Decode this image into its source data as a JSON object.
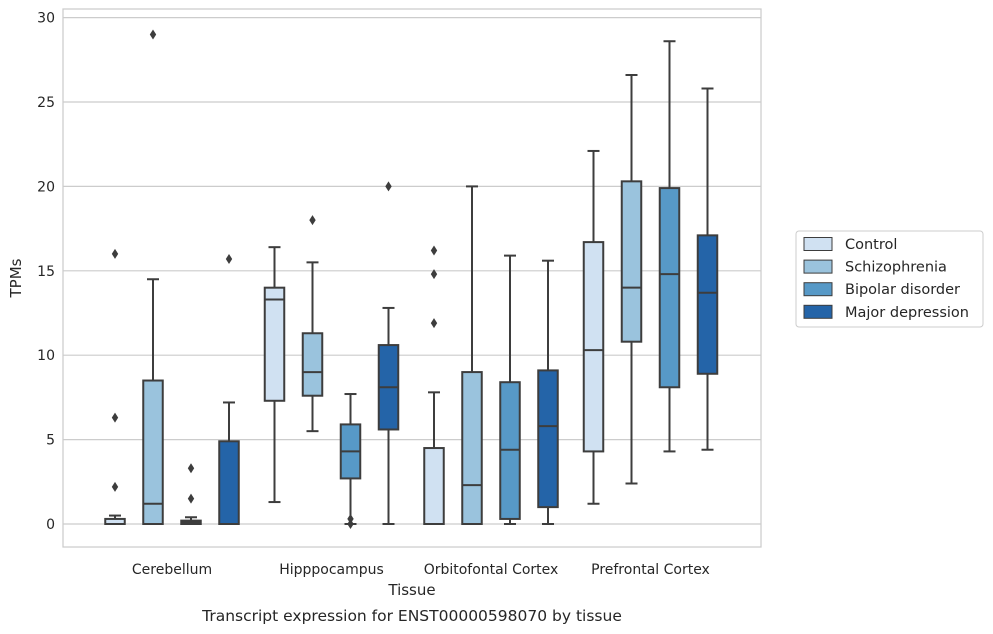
{
  "chart_data": {
    "type": "box",
    "caption": "Transcript expression for ENST00000598070 by tissue",
    "xlabel": "Tissue",
    "ylabel": "TPMs",
    "ylim": [
      -1.4,
      30.5
    ],
    "yticks": [
      0,
      5,
      10,
      15,
      20,
      25,
      30
    ],
    "grid": "horizontal",
    "legend_placement": "right",
    "categories": [
      "Cerebellum",
      "Hipppocampus",
      "Orbitofontal Cortex",
      "Prefrontal Cortex"
    ],
    "series": [
      {
        "name": "Control",
        "color": "#d0e1f2",
        "boxes": [
          {
            "whislo": 0,
            "q1": 0,
            "med": 0,
            "q3": 0.3,
            "whishi": 0.5,
            "fliers": [
              6.3,
              2.2,
              16.0
            ]
          },
          {
            "whislo": 1.3,
            "q1": 7.3,
            "med": 13.3,
            "q3": 14.0,
            "whishi": 16.4,
            "fliers": []
          },
          {
            "whislo": 0,
            "q1": 0,
            "med": 0,
            "q3": 4.5,
            "whishi": 7.8,
            "fliers": [
              11.9,
              14.8,
              16.2
            ]
          },
          {
            "whislo": 1.2,
            "q1": 4.3,
            "med": 10.3,
            "q3": 16.7,
            "whishi": 22.1,
            "fliers": []
          }
        ]
      },
      {
        "name": "Schizophrenia",
        "color": "#9ac3dd",
        "boxes": [
          {
            "whislo": 0,
            "q1": 0,
            "med": 1.2,
            "q3": 8.5,
            "whishi": 14.5,
            "fliers": [
              29.0
            ]
          },
          {
            "whislo": 5.5,
            "q1": 7.6,
            "med": 9.0,
            "q3": 11.3,
            "whishi": 15.5,
            "fliers": [
              18.0
            ]
          },
          {
            "whislo": 0,
            "q1": 0,
            "med": 2.3,
            "q3": 9.0,
            "whishi": 20.0,
            "fliers": []
          },
          {
            "whislo": 2.4,
            "q1": 10.8,
            "med": 14.0,
            "q3": 20.3,
            "whishi": 26.6,
            "fliers": []
          }
        ]
      },
      {
        "name": "Bipolar disorder",
        "color": "#5799c7",
        "boxes": [
          {
            "whislo": 0,
            "q1": 0,
            "med": 0.1,
            "q3": 0.2,
            "whishi": 0.4,
            "fliers": [
              1.5,
              3.3
            ]
          },
          {
            "whislo": 0,
            "q1": 2.7,
            "med": 4.3,
            "q3": 5.9,
            "whishi": 7.7,
            "fliers": [
              0.3,
              0.0
            ]
          },
          {
            "whislo": 0,
            "q1": 0.3,
            "med": 4.4,
            "q3": 8.4,
            "whishi": 15.9,
            "fliers": []
          },
          {
            "whislo": 4.3,
            "q1": 8.1,
            "med": 14.8,
            "q3": 19.9,
            "whishi": 28.6,
            "fliers": []
          }
        ]
      },
      {
        "name": "Major depression",
        "color": "#2464a8",
        "boxes": [
          {
            "whislo": 0,
            "q1": 0,
            "med": 0,
            "q3": 4.9,
            "whishi": 7.2,
            "fliers": [
              15.7
            ]
          },
          {
            "whislo": 0,
            "q1": 5.6,
            "med": 8.1,
            "q3": 10.6,
            "whishi": 12.8,
            "fliers": [
              20.0
            ]
          },
          {
            "whislo": 0,
            "q1": 1.0,
            "med": 5.8,
            "q3": 9.1,
            "whishi": 15.6,
            "fliers": []
          },
          {
            "whislo": 4.4,
            "q1": 8.9,
            "med": 13.7,
            "q3": 17.1,
            "whishi": 25.8,
            "fliers": []
          }
        ]
      }
    ]
  }
}
